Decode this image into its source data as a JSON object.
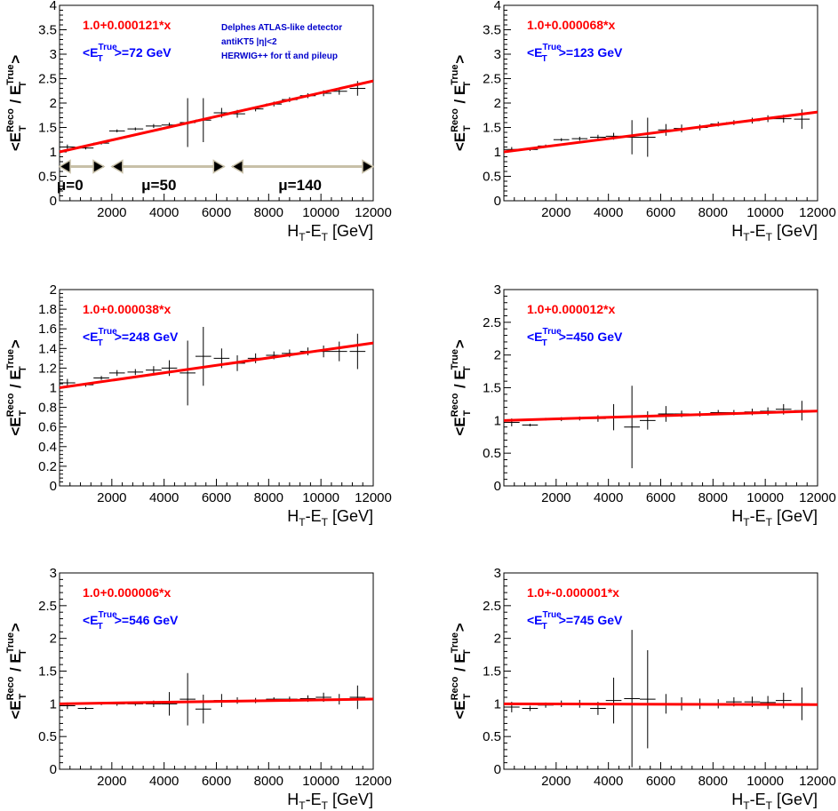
{
  "colors": {
    "fit_line": "#ff0000",
    "fit_label": "#ff0000",
    "mean_label": "#0000ff",
    "note_text": "#0000cc",
    "data": "#000000",
    "arrow": "#c8c0a8",
    "arrow_head": "#000000"
  },
  "axis_common": {
    "xlabel_main": "H",
    "xlabel_sub1": "T",
    "xlabel_mid": "-E",
    "xlabel_sub2": "T",
    "xlabel_unit": " [GeV]",
    "ylabel_open": "<E",
    "ylabel_sup1": "Reco",
    "ylabel_sub1": "T",
    "ylabel_slash": " / E",
    "ylabel_sup2": "True",
    "ylabel_sub2": "T",
    "ylabel_close": ">",
    "mean_prefix": "<E",
    "mean_sub": "T",
    "mean_sup": "True"
  },
  "notes": {
    "line1": "Delphes ATLAS-like detector",
    "line2": "antiKT5 |η|<2",
    "line3": "HERWIG++ for tt̄ and pileup"
  },
  "mu_labels": [
    "μ=0",
    "μ=50",
    "μ=140"
  ],
  "chart_data": [
    {
      "type": "scatter",
      "fit_label": "1.0+0.000121*x",
      "mean_value": ">=72 GeV",
      "fit": {
        "intercept": 1.0,
        "slope": 0.000121
      },
      "xlim": [
        0,
        12000
      ],
      "ylim": [
        0,
        4
      ],
      "xticks": [
        "2000",
        "4000",
        "6000",
        "8000",
        "10000",
        "12000"
      ],
      "yticks": [
        "0",
        "0.5",
        "1",
        "1.5",
        "2",
        "2.5",
        "3",
        "3.5",
        "4"
      ],
      "points": [
        {
          "x": 300,
          "y": 1.1,
          "xerr": 300,
          "yerr": 0.05
        },
        {
          "x": 1000,
          "y": 1.08,
          "xerr": 300,
          "yerr": 0.03
        },
        {
          "x": 1600,
          "y": 1.18,
          "xerr": 300,
          "yerr": 0.03
        },
        {
          "x": 2200,
          "y": 1.43,
          "xerr": 300,
          "yerr": 0.03
        },
        {
          "x": 2900,
          "y": 1.47,
          "xerr": 300,
          "yerr": 0.03
        },
        {
          "x": 3600,
          "y": 1.53,
          "xerr": 300,
          "yerr": 0.04
        },
        {
          "x": 4200,
          "y": 1.55,
          "xerr": 300,
          "yerr": 0.05
        },
        {
          "x": 4900,
          "y": 1.6,
          "xerr": 300,
          "yerr": 0.5
        },
        {
          "x": 5500,
          "y": 1.65,
          "xerr": 300,
          "yerr": 0.45
        },
        {
          "x": 6200,
          "y": 1.8,
          "xerr": 300,
          "yerr": 0.1
        },
        {
          "x": 6800,
          "y": 1.78,
          "xerr": 300,
          "yerr": 0.08
        },
        {
          "x": 7500,
          "y": 1.88,
          "xerr": 300,
          "yerr": 0.05
        },
        {
          "x": 8200,
          "y": 1.98,
          "xerr": 300,
          "yerr": 0.05
        },
        {
          "x": 8800,
          "y": 2.07,
          "xerr": 300,
          "yerr": 0.05
        },
        {
          "x": 9500,
          "y": 2.15,
          "xerr": 300,
          "yerr": 0.05
        },
        {
          "x": 10100,
          "y": 2.2,
          "xerr": 300,
          "yerr": 0.06
        },
        {
          "x": 10700,
          "y": 2.24,
          "xerr": 300,
          "yerr": 0.07
        },
        {
          "x": 11400,
          "y": 2.3,
          "xerr": 300,
          "yerr": 0.15
        }
      ]
    },
    {
      "type": "scatter",
      "fit_label": "1.0+0.000068*x",
      "mean_value": ">=123 GeV",
      "fit": {
        "intercept": 1.0,
        "slope": 6.8e-05
      },
      "xlim": [
        0,
        12000
      ],
      "ylim": [
        0,
        4
      ],
      "xticks": [
        "2000",
        "4000",
        "6000",
        "8000",
        "10000",
        "12000"
      ],
      "yticks": [
        "0",
        "0.5",
        "1",
        "1.5",
        "2",
        "2.5",
        "3",
        "3.5",
        "4"
      ],
      "points": [
        {
          "x": 300,
          "y": 1.05,
          "xerr": 300,
          "yerr": 0.05
        },
        {
          "x": 1000,
          "y": 1.05,
          "xerr": 300,
          "yerr": 0.03
        },
        {
          "x": 1600,
          "y": 1.12,
          "xerr": 300,
          "yerr": 0.03
        },
        {
          "x": 2200,
          "y": 1.25,
          "xerr": 300,
          "yerr": 0.03
        },
        {
          "x": 2900,
          "y": 1.27,
          "xerr": 300,
          "yerr": 0.04
        },
        {
          "x": 3600,
          "y": 1.3,
          "xerr": 300,
          "yerr": 0.05
        },
        {
          "x": 4200,
          "y": 1.32,
          "xerr": 300,
          "yerr": 0.07
        },
        {
          "x": 4900,
          "y": 1.3,
          "xerr": 300,
          "yerr": 0.35
        },
        {
          "x": 5500,
          "y": 1.3,
          "xerr": 300,
          "yerr": 0.4
        },
        {
          "x": 6200,
          "y": 1.45,
          "xerr": 300,
          "yerr": 0.12
        },
        {
          "x": 6800,
          "y": 1.48,
          "xerr": 300,
          "yerr": 0.08
        },
        {
          "x": 7500,
          "y": 1.5,
          "xerr": 300,
          "yerr": 0.06
        },
        {
          "x": 8200,
          "y": 1.57,
          "xerr": 300,
          "yerr": 0.05
        },
        {
          "x": 8800,
          "y": 1.6,
          "xerr": 300,
          "yerr": 0.05
        },
        {
          "x": 9500,
          "y": 1.64,
          "xerr": 300,
          "yerr": 0.06
        },
        {
          "x": 10100,
          "y": 1.68,
          "xerr": 300,
          "yerr": 0.07
        },
        {
          "x": 10700,
          "y": 1.68,
          "xerr": 300,
          "yerr": 0.08
        },
        {
          "x": 11400,
          "y": 1.67,
          "xerr": 300,
          "yerr": 0.2
        }
      ]
    },
    {
      "type": "scatter",
      "fit_label": "1.0+0.000038*x",
      "mean_value": ">=248 GeV",
      "fit": {
        "intercept": 1.0,
        "slope": 3.8e-05
      },
      "xlim": [
        0,
        12000
      ],
      "ylim": [
        0,
        2
      ],
      "xticks": [
        "2000",
        "4000",
        "6000",
        "8000",
        "10000",
        "12000"
      ],
      "yticks": [
        "0",
        "0.2",
        "0.4",
        "0.6",
        "0.8",
        "1",
        "1.2",
        "1.4",
        "1.6",
        "1.8",
        "2"
      ],
      "points": [
        {
          "x": 300,
          "y": 1.05,
          "xerr": 300,
          "yerr": 0.04
        },
        {
          "x": 1000,
          "y": 1.03,
          "xerr": 300,
          "yerr": 0.02
        },
        {
          "x": 1600,
          "y": 1.1,
          "xerr": 300,
          "yerr": 0.02
        },
        {
          "x": 2200,
          "y": 1.15,
          "xerr": 300,
          "yerr": 0.03
        },
        {
          "x": 2900,
          "y": 1.16,
          "xerr": 300,
          "yerr": 0.03
        },
        {
          "x": 3600,
          "y": 1.18,
          "xerr": 300,
          "yerr": 0.04
        },
        {
          "x": 4200,
          "y": 1.2,
          "xerr": 300,
          "yerr": 0.08
        },
        {
          "x": 4900,
          "y": 1.15,
          "xerr": 300,
          "yerr": 0.33
        },
        {
          "x": 5500,
          "y": 1.32,
          "xerr": 300,
          "yerr": 0.3
        },
        {
          "x": 6200,
          "y": 1.3,
          "xerr": 300,
          "yerr": 0.1
        },
        {
          "x": 6800,
          "y": 1.25,
          "xerr": 300,
          "yerr": 0.08
        },
        {
          "x": 7500,
          "y": 1.3,
          "xerr": 300,
          "yerr": 0.05
        },
        {
          "x": 8200,
          "y": 1.33,
          "xerr": 300,
          "yerr": 0.04
        },
        {
          "x": 8800,
          "y": 1.35,
          "xerr": 300,
          "yerr": 0.04
        },
        {
          "x": 9500,
          "y": 1.37,
          "xerr": 300,
          "yerr": 0.04
        },
        {
          "x": 10100,
          "y": 1.37,
          "xerr": 300,
          "yerr": 0.06
        },
        {
          "x": 10700,
          "y": 1.37,
          "xerr": 300,
          "yerr": 0.1
        },
        {
          "x": 11400,
          "y": 1.37,
          "xerr": 300,
          "yerr": 0.18
        }
      ]
    },
    {
      "type": "scatter",
      "fit_label": "1.0+0.000012*x",
      "mean_value": ">=450 GeV",
      "fit": {
        "intercept": 1.0,
        "slope": 1.2e-05
      },
      "xlim": [
        0,
        12000
      ],
      "ylim": [
        0,
        3
      ],
      "xticks": [
        "2000",
        "4000",
        "6000",
        "8000",
        "10000",
        "12000"
      ],
      "yticks": [
        "0",
        "0.5",
        "1",
        "1.5",
        "2",
        "2.5",
        "3"
      ],
      "points": [
        {
          "x": 300,
          "y": 0.97,
          "xerr": 300,
          "yerr": 0.06
        },
        {
          "x": 1000,
          "y": 0.93,
          "xerr": 300,
          "yerr": 0.02
        },
        {
          "x": 1600,
          "y": 1.02,
          "xerr": 300,
          "yerr": 0.02
        },
        {
          "x": 2200,
          "y": 1.02,
          "xerr": 300,
          "yerr": 0.03
        },
        {
          "x": 2900,
          "y": 1.03,
          "xerr": 300,
          "yerr": 0.03
        },
        {
          "x": 3600,
          "y": 1.03,
          "xerr": 300,
          "yerr": 0.05
        },
        {
          "x": 4200,
          "y": 1.05,
          "xerr": 300,
          "yerr": 0.2
        },
        {
          "x": 4900,
          "y": 0.9,
          "xerr": 300,
          "yerr": 0.63
        },
        {
          "x": 5500,
          "y": 1.0,
          "xerr": 300,
          "yerr": 0.14
        },
        {
          "x": 6200,
          "y": 1.1,
          "xerr": 300,
          "yerr": 0.12
        },
        {
          "x": 6800,
          "y": 1.1,
          "xerr": 300,
          "yerr": 0.05
        },
        {
          "x": 7500,
          "y": 1.1,
          "xerr": 300,
          "yerr": 0.04
        },
        {
          "x": 8200,
          "y": 1.12,
          "xerr": 300,
          "yerr": 0.04
        },
        {
          "x": 8800,
          "y": 1.12,
          "xerr": 300,
          "yerr": 0.04
        },
        {
          "x": 9500,
          "y": 1.13,
          "xerr": 300,
          "yerr": 0.05
        },
        {
          "x": 10100,
          "y": 1.14,
          "xerr": 300,
          "yerr": 0.06
        },
        {
          "x": 10700,
          "y": 1.17,
          "xerr": 300,
          "yerr": 0.08
        },
        {
          "x": 11400,
          "y": 1.15,
          "xerr": 300,
          "yerr": 0.15
        }
      ]
    },
    {
      "type": "scatter",
      "fit_label": "1.0+0.000006*x",
      "mean_value": ">=546 GeV",
      "fit": {
        "intercept": 1.0,
        "slope": 6e-06
      },
      "xlim": [
        0,
        12000
      ],
      "ylim": [
        0,
        3
      ],
      "xticks": [
        "2000",
        "4000",
        "6000",
        "8000",
        "10000",
        "12000"
      ],
      "yticks": [
        "0",
        "0.5",
        "1",
        "1.5",
        "2",
        "2.5",
        "3"
      ],
      "points": [
        {
          "x": 300,
          "y": 0.97,
          "xerr": 300,
          "yerr": 0.05
        },
        {
          "x": 1000,
          "y": 0.93,
          "xerr": 300,
          "yerr": 0.02
        },
        {
          "x": 1600,
          "y": 1.0,
          "xerr": 300,
          "yerr": 0.02
        },
        {
          "x": 2200,
          "y": 1.0,
          "xerr": 300,
          "yerr": 0.03
        },
        {
          "x": 2900,
          "y": 1.0,
          "xerr": 300,
          "yerr": 0.03
        },
        {
          "x": 3600,
          "y": 1.0,
          "xerr": 300,
          "yerr": 0.05
        },
        {
          "x": 4200,
          "y": 1.0,
          "xerr": 300,
          "yerr": 0.18
        },
        {
          "x": 4900,
          "y": 1.07,
          "xerr": 300,
          "yerr": 0.4
        },
        {
          "x": 5500,
          "y": 0.92,
          "xerr": 300,
          "yerr": 0.22
        },
        {
          "x": 6200,
          "y": 1.05,
          "xerr": 300,
          "yerr": 0.1
        },
        {
          "x": 6800,
          "y": 1.05,
          "xerr": 300,
          "yerr": 0.05
        },
        {
          "x": 7500,
          "y": 1.05,
          "xerr": 300,
          "yerr": 0.04
        },
        {
          "x": 8200,
          "y": 1.07,
          "xerr": 300,
          "yerr": 0.03
        },
        {
          "x": 8800,
          "y": 1.07,
          "xerr": 300,
          "yerr": 0.04
        },
        {
          "x": 9500,
          "y": 1.08,
          "xerr": 300,
          "yerr": 0.05
        },
        {
          "x": 10100,
          "y": 1.1,
          "xerr": 300,
          "yerr": 0.07
        },
        {
          "x": 10700,
          "y": 1.07,
          "xerr": 300,
          "yerr": 0.08
        },
        {
          "x": 11400,
          "y": 1.1,
          "xerr": 300,
          "yerr": 0.18
        }
      ]
    },
    {
      "type": "scatter",
      "fit_label": "1.0+-0.000001*x",
      "mean_value": ">=745 GeV",
      "fit": {
        "intercept": 1.0,
        "slope": -1e-06
      },
      "xlim": [
        0,
        12000
      ],
      "ylim": [
        0,
        3
      ],
      "xticks": [
        "2000",
        "4000",
        "6000",
        "8000",
        "10000",
        "12000"
      ],
      "yticks": [
        "0",
        "0.5",
        "1",
        "1.5",
        "2",
        "2.5",
        "3"
      ],
      "points": [
        {
          "x": 300,
          "y": 0.95,
          "xerr": 300,
          "yerr": 0.08
        },
        {
          "x": 1000,
          "y": 0.93,
          "xerr": 300,
          "yerr": 0.04
        },
        {
          "x": 1600,
          "y": 0.98,
          "xerr": 300,
          "yerr": 0.04
        },
        {
          "x": 2200,
          "y": 1.0,
          "xerr": 300,
          "yerr": 0.05
        },
        {
          "x": 2900,
          "y": 1.0,
          "xerr": 300,
          "yerr": 0.06
        },
        {
          "x": 3600,
          "y": 0.93,
          "xerr": 300,
          "yerr": 0.1
        },
        {
          "x": 4200,
          "y": 1.05,
          "xerr": 300,
          "yerr": 0.35
        },
        {
          "x": 4900,
          "y": 1.08,
          "xerr": 300,
          "yerr": 1.05
        },
        {
          "x": 5500,
          "y": 1.07,
          "xerr": 300,
          "yerr": 0.75
        },
        {
          "x": 6200,
          "y": 1.0,
          "xerr": 300,
          "yerr": 0.15
        },
        {
          "x": 6800,
          "y": 1.0,
          "xerr": 300,
          "yerr": 0.1
        },
        {
          "x": 7500,
          "y": 1.0,
          "xerr": 300,
          "yerr": 0.08
        },
        {
          "x": 8200,
          "y": 1.0,
          "xerr": 300,
          "yerr": 0.07
        },
        {
          "x": 8800,
          "y": 1.03,
          "xerr": 300,
          "yerr": 0.07
        },
        {
          "x": 9500,
          "y": 1.03,
          "xerr": 300,
          "yerr": 0.08
        },
        {
          "x": 10100,
          "y": 1.02,
          "xerr": 300,
          "yerr": 0.1
        },
        {
          "x": 10700,
          "y": 1.05,
          "xerr": 300,
          "yerr": 0.12
        },
        {
          "x": 11400,
          "y": 1.0,
          "xerr": 300,
          "yerr": 0.25
        }
      ]
    }
  ]
}
